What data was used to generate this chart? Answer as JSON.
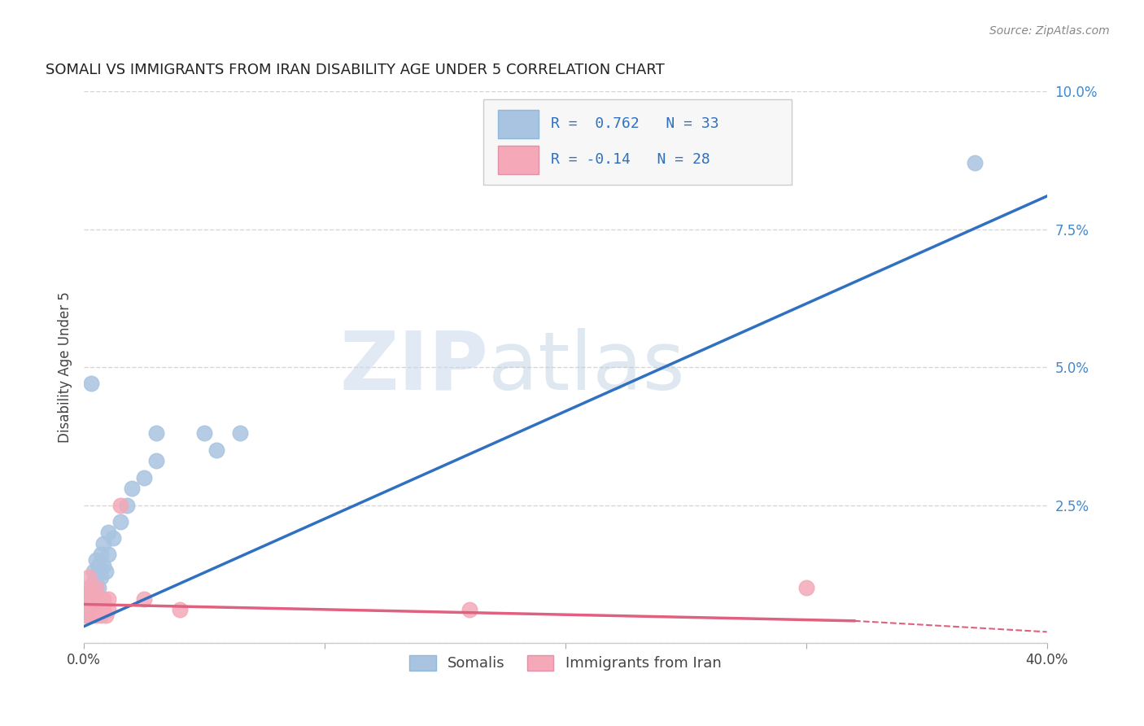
{
  "title": "SOMALI VS IMMIGRANTS FROM IRAN DISABILITY AGE UNDER 5 CORRELATION CHART",
  "source": "Source: ZipAtlas.com",
  "ylabel": "Disability Age Under 5",
  "xlim": [
    0.0,
    0.4
  ],
  "ylim": [
    0.0,
    0.1
  ],
  "yticks": [
    0.0,
    0.025,
    0.05,
    0.075,
    0.1
  ],
  "ytick_labels": [
    "",
    "2.5%",
    "5.0%",
    "7.5%",
    "10.0%"
  ],
  "xticks": [
    0.0,
    0.1,
    0.2,
    0.3,
    0.4
  ],
  "xtick_labels": [
    "0.0%",
    "",
    "",
    "",
    "40.0%"
  ],
  "somali_R": 0.762,
  "somali_N": 33,
  "iran_R": -0.14,
  "iran_N": 28,
  "somali_color": "#a8c4e0",
  "iran_color": "#f4a8b8",
  "somali_line_color": "#3070c0",
  "iran_line_color": "#e06080",
  "background_color": "#ffffff",
  "watermark_zip": "ZIP",
  "watermark_atlas": "atlas",
  "somali_points": [
    [
      0.001,
      0.005
    ],
    [
      0.002,
      0.006
    ],
    [
      0.002,
      0.008
    ],
    [
      0.003,
      0.007
    ],
    [
      0.003,
      0.009
    ],
    [
      0.003,
      0.01
    ],
    [
      0.004,
      0.008
    ],
    [
      0.004,
      0.011
    ],
    [
      0.004,
      0.013
    ],
    [
      0.005,
      0.009
    ],
    [
      0.005,
      0.012
    ],
    [
      0.005,
      0.015
    ],
    [
      0.006,
      0.01
    ],
    [
      0.006,
      0.014
    ],
    [
      0.007,
      0.012
    ],
    [
      0.007,
      0.016
    ],
    [
      0.008,
      0.014
    ],
    [
      0.008,
      0.018
    ],
    [
      0.009,
      0.013
    ],
    [
      0.01,
      0.016
    ],
    [
      0.01,
      0.02
    ],
    [
      0.012,
      0.019
    ],
    [
      0.015,
      0.022
    ],
    [
      0.018,
      0.025
    ],
    [
      0.02,
      0.028
    ],
    [
      0.025,
      0.03
    ],
    [
      0.03,
      0.033
    ],
    [
      0.055,
      0.035
    ],
    [
      0.065,
      0.038
    ],
    [
      0.003,
      0.047
    ],
    [
      0.03,
      0.038
    ],
    [
      0.05,
      0.038
    ],
    [
      0.37,
      0.087
    ]
  ],
  "iran_points": [
    [
      0.001,
      0.005
    ],
    [
      0.001,
      0.007
    ],
    [
      0.002,
      0.006
    ],
    [
      0.002,
      0.008
    ],
    [
      0.002,
      0.01
    ],
    [
      0.003,
      0.005
    ],
    [
      0.003,
      0.007
    ],
    [
      0.003,
      0.009
    ],
    [
      0.004,
      0.006
    ],
    [
      0.004,
      0.008
    ],
    [
      0.005,
      0.005
    ],
    [
      0.005,
      0.007
    ],
    [
      0.005,
      0.01
    ],
    [
      0.006,
      0.006
    ],
    [
      0.006,
      0.008
    ],
    [
      0.007,
      0.005
    ],
    [
      0.007,
      0.007
    ],
    [
      0.008,
      0.006
    ],
    [
      0.008,
      0.008
    ],
    [
      0.009,
      0.005
    ],
    [
      0.01,
      0.006
    ],
    [
      0.01,
      0.008
    ],
    [
      0.015,
      0.025
    ],
    [
      0.025,
      0.008
    ],
    [
      0.04,
      0.006
    ],
    [
      0.16,
      0.006
    ],
    [
      0.3,
      0.01
    ],
    [
      0.002,
      0.012
    ]
  ],
  "somali_line": [
    [
      0.0,
      0.003
    ],
    [
      0.4,
      0.081
    ]
  ],
  "iran_line_solid": [
    [
      0.0,
      0.007
    ],
    [
      0.32,
      0.004
    ]
  ],
  "iran_line_dash": [
    [
      0.32,
      0.004
    ],
    [
      0.4,
      0.002
    ]
  ]
}
